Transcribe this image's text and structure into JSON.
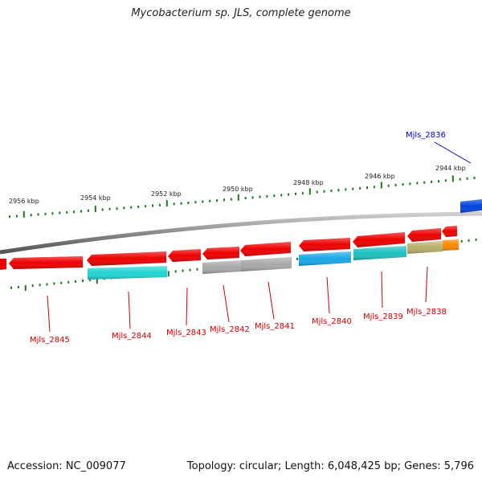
{
  "title": "Mycobacterium sp. JLS, complete genome",
  "footer": {
    "accession": "Accession: NC_009077",
    "summary": "Topology: circular; Length: 6,048,425 bp; Genes: 5,796"
  },
  "scale": {
    "ticks": [
      "2956 kbp",
      "2954 kbp",
      "2952 kbp",
      "2950 kbp",
      "2948 kbp",
      "2946 kbp",
      "2944 kbp"
    ],
    "tick_color": "#1a7a1a"
  },
  "colors": {
    "red": "#ee0000",
    "cyan": "#22d4d4",
    "blue": "#0044dd",
    "gray": "#a8a8a8",
    "olive": "#b8ae6a",
    "orange": "#ff8800",
    "label_red": "#cc0000",
    "label_blue": "#0000cc"
  },
  "gene_labels": [
    {
      "text": "Mjls_2836",
      "color": "blue"
    },
    {
      "text": "Mjls_2838",
      "color": "red"
    },
    {
      "text": "Mjls_2839",
      "color": "red"
    },
    {
      "text": "Mjls_2840",
      "color": "red"
    },
    {
      "text": "Mjls_2841",
      "color": "red"
    },
    {
      "text": "Mjls_2842",
      "color": "red"
    },
    {
      "text": "Mjls_2843",
      "color": "red"
    },
    {
      "text": "Mjls_2844",
      "color": "red"
    },
    {
      "text": "Mjls_2845",
      "color": "red"
    }
  ]
}
